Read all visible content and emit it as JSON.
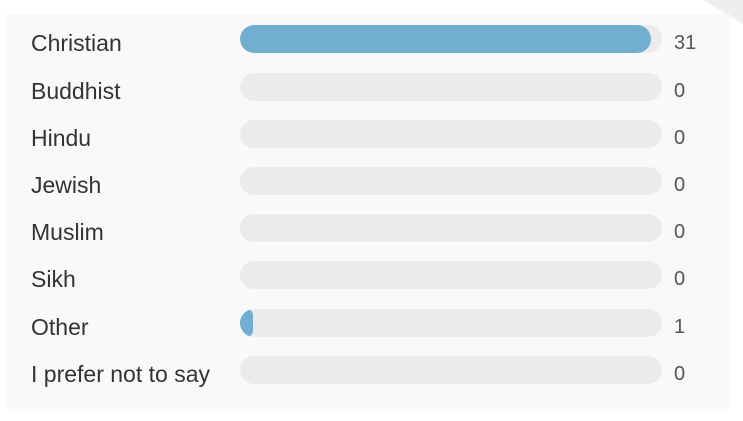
{
  "colors": {
    "bar_fill": "#71afd0",
    "track": "#ebebeb",
    "panel_background": "#f9f9f9"
  },
  "poll": {
    "max_count": 31,
    "options": [
      {
        "label": "Christian",
        "count": "31",
        "fill_fraction": 0.975
      },
      {
        "label": "Buddhist",
        "count": "0",
        "fill_fraction": 0
      },
      {
        "label": "Hindu",
        "count": "0",
        "fill_fraction": 0
      },
      {
        "label": "Jewish",
        "count": "0",
        "fill_fraction": 0
      },
      {
        "label": "Muslim",
        "count": "0",
        "fill_fraction": 0
      },
      {
        "label": "Sikh",
        "count": "0",
        "fill_fraction": 0
      },
      {
        "label": "Other",
        "count": "1",
        "fill_fraction": 0.03
      },
      {
        "label": "I prefer not to say",
        "count": "0",
        "fill_fraction": 0
      }
    ]
  }
}
